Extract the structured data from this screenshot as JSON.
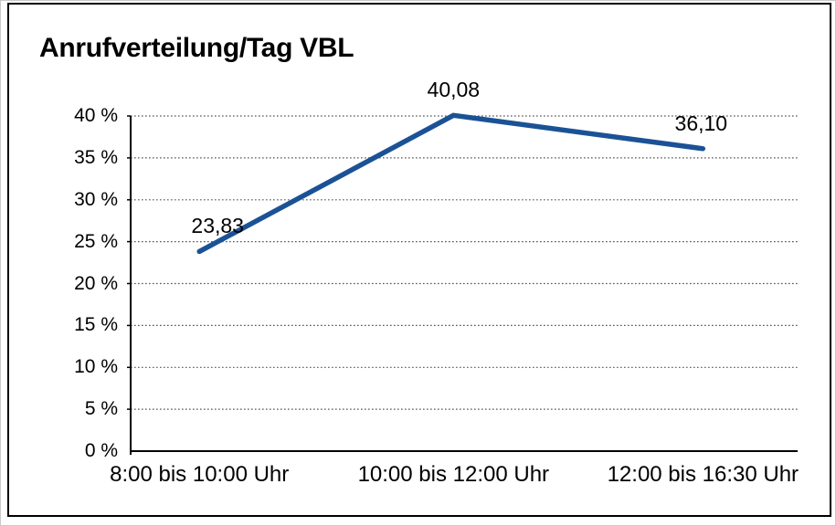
{
  "chart": {
    "title": "Anrufverteilung/Tag VBL"
  },
  "chart_data": {
    "type": "line",
    "title": "Anrufverteilung/Tag VBL",
    "categories": [
      "8:00 bis 10:00 Uhr",
      "10:00 bis 12:00 Uhr",
      "12:00 bis 16:30 Uhr"
    ],
    "values": [
      23.83,
      40.08,
      36.1
    ],
    "value_labels": [
      "23,83",
      "40,08",
      "36,10"
    ],
    "series_unit": "%",
    "xlabel": "",
    "ylabel": "",
    "ylim": [
      0,
      40
    ],
    "ytick_step": 5,
    "ytick_labels": [
      "0 %",
      "5 %",
      "10 %",
      "15 %",
      "20 %",
      "25 %",
      "30 %",
      "35 %",
      "40 %"
    ],
    "grid": "horizontal-dotted",
    "legend": "none",
    "colors": {
      "line": "#1B5296",
      "axis": "#000000",
      "gridline": "#555555",
      "text": "#000000",
      "background": "#ffffff"
    }
  }
}
